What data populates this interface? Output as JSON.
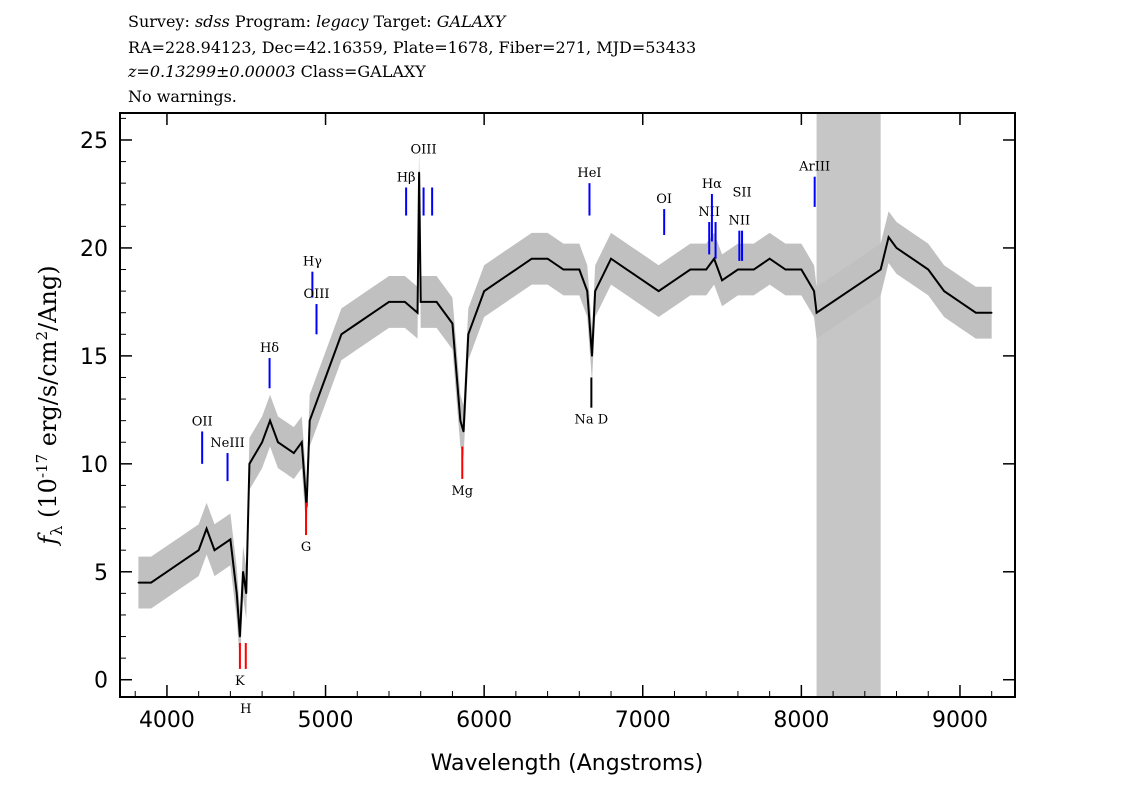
{
  "header": {
    "line1": {
      "survey_label": "Survey:",
      "survey": "sdss",
      "program_label": "Program:",
      "program": "legacy",
      "target_label": "Target:",
      "target": "GALAXY"
    },
    "line2": "RA=228.94123, Dec=42.16359, Plate=1678, Fiber=271, MJD=53433",
    "line3": {
      "z": "z=0.13299±0.00003",
      "class": "Class=GALAXY"
    },
    "line4": "No warnings."
  },
  "chart_data": {
    "type": "line",
    "xlabel": "Wavelength (Angstroms)",
    "ylabel": "f_λ (10^-17 erg/s/cm^2/Ang)",
    "ylabel_parts": {
      "f": "f",
      "sub": "λ",
      "pre": " (10",
      "exp1": "-17",
      "mid": " erg/s/cm",
      "exp2": "2",
      "post": "/Ang)"
    },
    "xlim": [
      3704,
      9347
    ],
    "ylim": [
      -0.8,
      26.25
    ],
    "xticks": [
      4000,
      5000,
      6000,
      7000,
      8000,
      9000
    ],
    "yticks": [
      0,
      5,
      10,
      15,
      20,
      25
    ],
    "grid": false,
    "series_colors": {
      "flux": "#000000",
      "error": "#c0c0c0",
      "masked": "#c6c6c6",
      "emission": "#0000ff",
      "absorption": "#ff0000",
      "sky": "#000000"
    },
    "masked_region": [
      8096,
      8500
    ],
    "flux": {
      "x": [
        3820,
        3900,
        4000,
        4100,
        4200,
        4250,
        4300,
        4400,
        4440,
        4460,
        4480,
        4500,
        4520,
        4600,
        4650,
        4700,
        4800,
        4850,
        4880,
        4900,
        4950,
        5000,
        5100,
        5200,
        5300,
        5400,
        5500,
        5580,
        5590,
        5600,
        5700,
        5800,
        5850,
        5870,
        5900,
        6000,
        6100,
        6200,
        6300,
        6400,
        6500,
        6600,
        6650,
        6680,
        6700,
        6800,
        6900,
        7000,
        7100,
        7200,
        7300,
        7400,
        7450,
        7500,
        7600,
        7700,
        7800,
        7900,
        8000,
        8080,
        8096,
        8500,
        8550,
        8600,
        8700,
        8800,
        8900,
        9000,
        9100,
        9200
      ],
      "y": [
        4.5,
        4.5,
        5,
        5.5,
        6,
        7,
        6,
        6.5,
        4,
        2,
        5,
        4,
        10,
        11,
        12,
        11,
        10.5,
        11,
        8,
        12,
        13,
        14,
        16,
        16.5,
        17,
        17.5,
        17.5,
        17,
        23.5,
        17.5,
        17.5,
        16.5,
        12,
        11.5,
        16,
        18,
        18.5,
        19,
        19.5,
        19.5,
        19,
        19,
        18,
        15,
        18,
        19.5,
        19,
        18.5,
        18,
        18.5,
        19,
        19,
        19.5,
        18.5,
        19,
        19,
        19.5,
        19,
        19,
        18,
        17,
        19,
        20.5,
        20,
        19.5,
        19,
        18,
        17.5,
        17,
        17
      ]
    },
    "lines": [
      {
        "name": "OII",
        "wave": 4222,
        "type": "emission",
        "y0": 10,
        "y1": 11.5
      },
      {
        "name": "NeIII",
        "wave": 4382,
        "type": "emission",
        "y0": 9.2,
        "y1": 10.5
      },
      {
        "name": "Hδ",
        "wave": 4647,
        "type": "emission",
        "y0": 13.5,
        "y1": 14.9
      },
      {
        "name": "Hγ",
        "wave": 4917,
        "type": "emission",
        "y0": 17.7,
        "y1": 18.9
      },
      {
        "name": "OIII",
        "wave": 4943,
        "type": "emission",
        "y0": 16,
        "y1": 17.4
      },
      {
        "name": "Hβ",
        "wave": 5508,
        "type": "emission",
        "y0": 21.5,
        "y1": 22.8
      },
      {
        "name": "OIII",
        "wave": 5618,
        "type": "emission",
        "y0": 21.5,
        "y1": 22.8
      },
      {
        "name": "",
        "wave": 5672,
        "type": "emission",
        "y0": 21.5,
        "y1": 22.8
      },
      {
        "name": "HeI",
        "wave": 6664,
        "type": "emission",
        "y0": 21.5,
        "y1": 23
      },
      {
        "name": "OI",
        "wave": 7135,
        "type": "emission",
        "y0": 20.6,
        "y1": 21.8
      },
      {
        "name": "NII",
        "wave": 7419,
        "type": "emission",
        "y0": 19.7,
        "y1": 21.2
      },
      {
        "name": "Hα",
        "wave": 7436,
        "type": "emission",
        "y0": 20.3,
        "y1": 22.5
      },
      {
        "name": "",
        "wave": 7459,
        "type": "emission",
        "y0": 19.5,
        "y1": 21.2
      },
      {
        "name": "NII",
        "wave": 7609,
        "type": "emission",
        "y0": 19.4,
        "y1": 20.8
      },
      {
        "name": "SII",
        "wave": 7626,
        "type": "emission",
        "y0": 19.4,
        "y1": 20.8
      },
      {
        "name": "ArIII",
        "wave": 8084,
        "type": "emission",
        "y0": 21.9,
        "y1": 23.3
      },
      {
        "name": "K",
        "wave": 4460,
        "type": "absorption",
        "y0": 0.5,
        "y1": 1.7
      },
      {
        "name": "H",
        "wave": 4497,
        "type": "absorption",
        "y0": 0.5,
        "y1": 1.7
      },
      {
        "name": "G",
        "wave": 4877,
        "type": "absorption",
        "y0": 6.7,
        "y1": 8.2
      },
      {
        "name": "Mg",
        "wave": 5862,
        "type": "absorption",
        "y0": 9.3,
        "y1": 10.8
      },
      {
        "name": "Na D",
        "wave": 6676,
        "type": "sky",
        "y0": 12.6,
        "y1": 14
      }
    ],
    "label_offsets_note": ""
  }
}
